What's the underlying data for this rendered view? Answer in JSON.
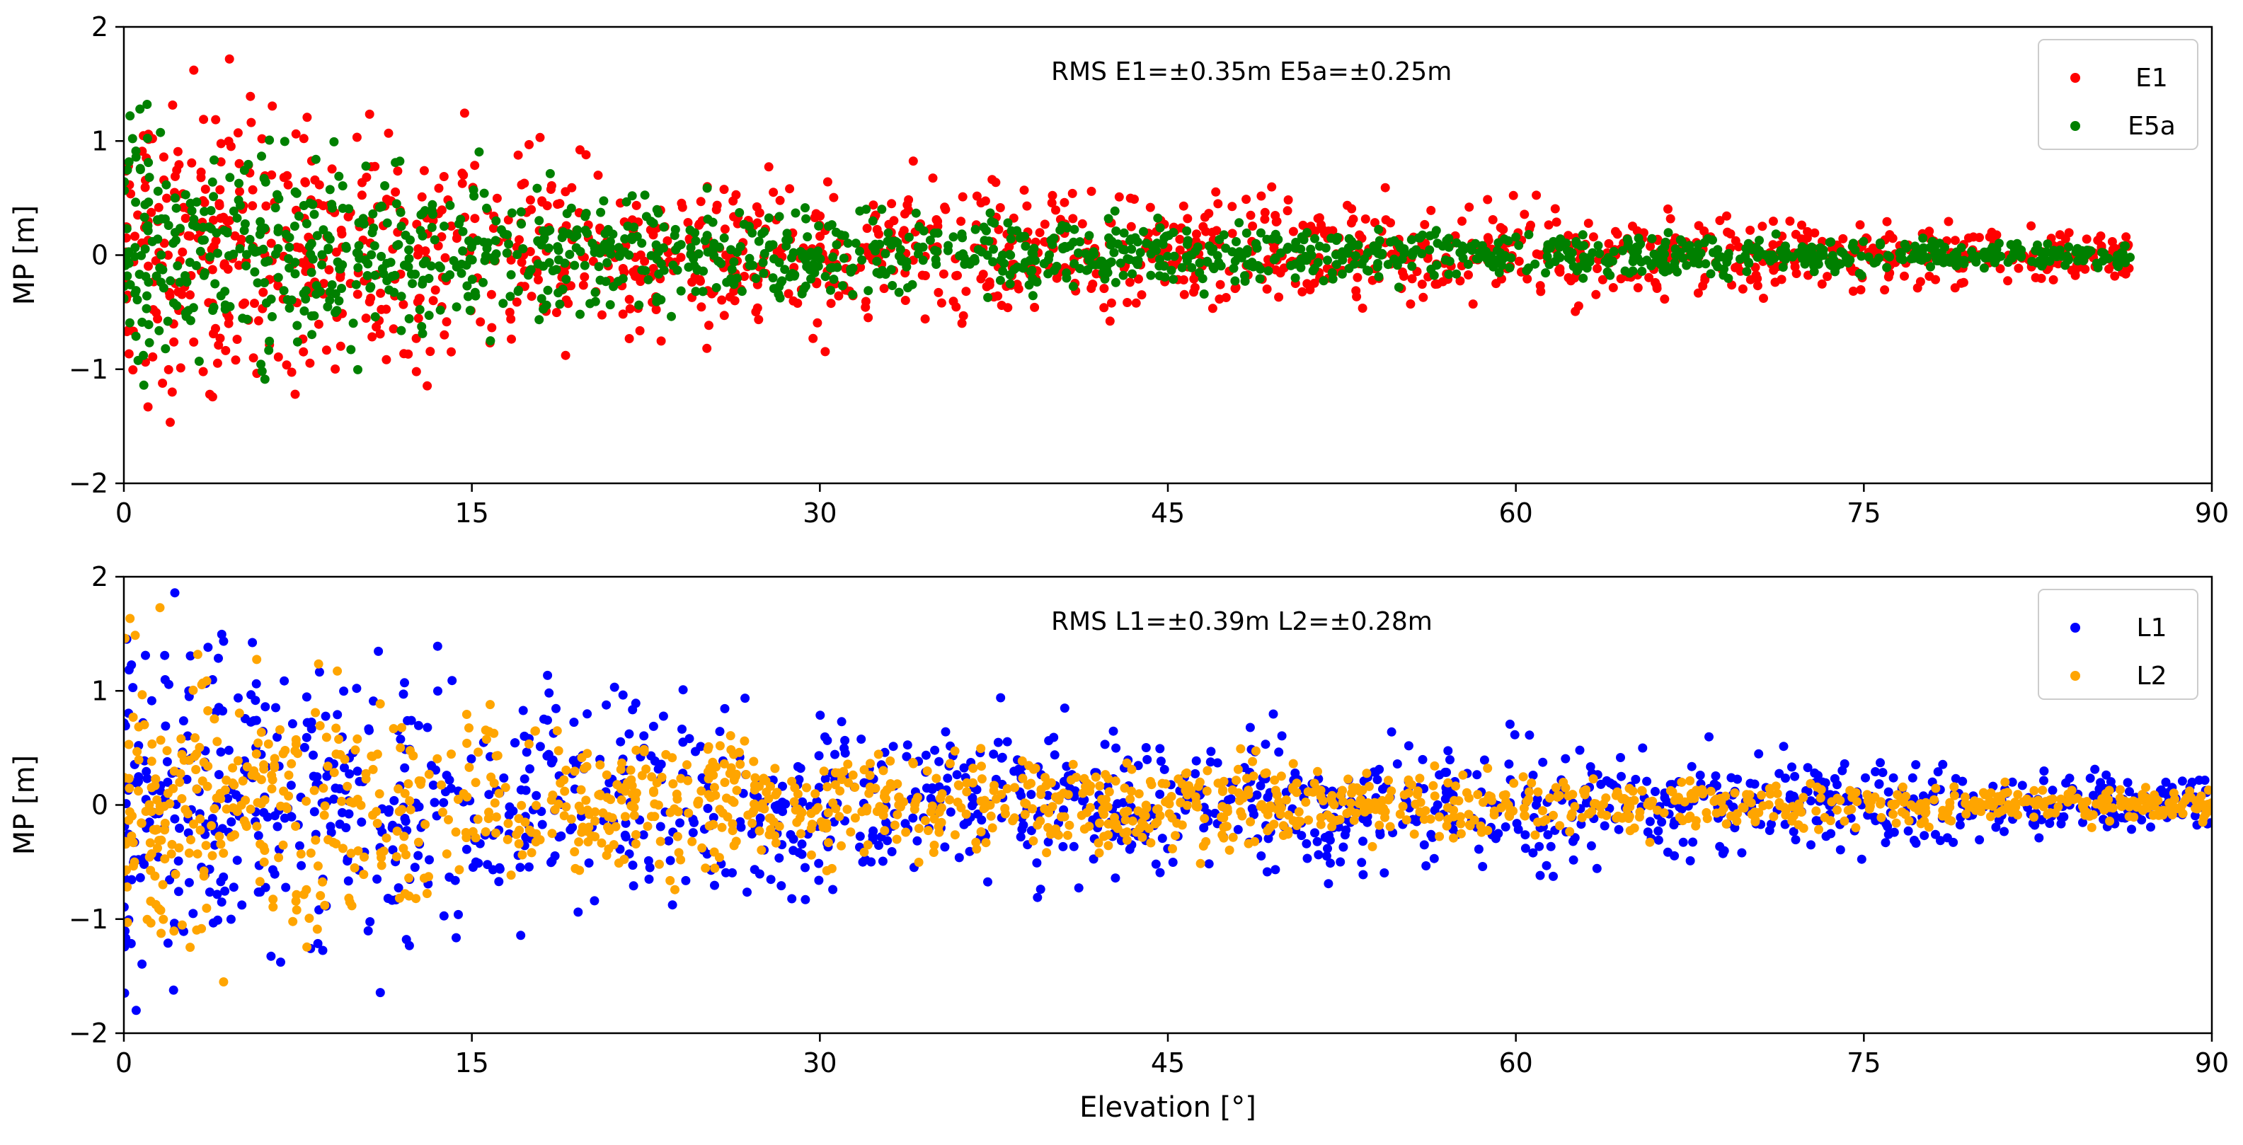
{
  "chart_data": [
    {
      "type": "scatter",
      "title": "",
      "xlabel": "",
      "ylabel": "MP [m]",
      "xlim": [
        0,
        90
      ],
      "ylim": [
        -2,
        2
      ],
      "xticks": [
        0,
        15,
        30,
        45,
        60,
        75,
        90
      ],
      "yticks": [
        -2,
        -1,
        0,
        1,
        2
      ],
      "xtick_labels": [
        "0",
        "15",
        "30",
        "45",
        "60",
        "75",
        "90"
      ],
      "ytick_labels": [
        "−2",
        "−1",
        "0",
        "1",
        "2"
      ],
      "annotation": "RMS E1=±0.35m E5a=±0.25m",
      "legend_position": "top-right",
      "grid": false,
      "series": [
        {
          "name": "E1",
          "color": "#ff0000",
          "rms": 0.35,
          "envelope": [
            {
              "x": 0,
              "sd": 0.7
            },
            {
              "x": 10,
              "sd": 0.55
            },
            {
              "x": 20,
              "sd": 0.4
            },
            {
              "x": 30,
              "sd": 0.3
            },
            {
              "x": 45,
              "sd": 0.25
            },
            {
              "x": 60,
              "sd": 0.2
            },
            {
              "x": 75,
              "sd": 0.15
            },
            {
              "x": 86.5,
              "sd": 0.1
            }
          ]
        },
        {
          "name": "E5a",
          "color": "#008000",
          "rms": 0.25,
          "envelope": [
            {
              "x": 0,
              "sd": 0.55
            },
            {
              "x": 10,
              "sd": 0.4
            },
            {
              "x": 20,
              "sd": 0.25
            },
            {
              "x": 30,
              "sd": 0.18
            },
            {
              "x": 45,
              "sd": 0.14
            },
            {
              "x": 60,
              "sd": 0.1
            },
            {
              "x": 75,
              "sd": 0.07
            },
            {
              "x": 86.5,
              "sd": 0.05
            }
          ]
        }
      ]
    },
    {
      "type": "scatter",
      "title": "",
      "xlabel": "Elevation [°]",
      "ylabel": "MP [m]",
      "xlim": [
        0,
        90
      ],
      "ylim": [
        -2,
        2
      ],
      "xticks": [
        0,
        15,
        30,
        45,
        60,
        75,
        90
      ],
      "yticks": [
        -2,
        -1,
        0,
        1,
        2
      ],
      "xtick_labels": [
        "0",
        "15",
        "30",
        "45",
        "60",
        "75",
        "90"
      ],
      "ytick_labels": [
        "−2",
        "−1",
        "0",
        "1",
        "2"
      ],
      "annotation": "RMS L1=±0.39m L2=±0.28m",
      "legend_position": "top-right",
      "grid": false,
      "series": [
        {
          "name": "L1",
          "color": "#0000ff",
          "rms": 0.39,
          "envelope": [
            {
              "x": 0,
              "sd": 0.75
            },
            {
              "x": 10,
              "sd": 0.6
            },
            {
              "x": 20,
              "sd": 0.45
            },
            {
              "x": 30,
              "sd": 0.35
            },
            {
              "x": 45,
              "sd": 0.3
            },
            {
              "x": 60,
              "sd": 0.25
            },
            {
              "x": 75,
              "sd": 0.18
            },
            {
              "x": 90,
              "sd": 0.12
            }
          ]
        },
        {
          "name": "L2",
          "color": "#ffa500",
          "rms": 0.28,
          "envelope": [
            {
              "x": 0,
              "sd": 0.6
            },
            {
              "x": 10,
              "sd": 0.48
            },
            {
              "x": 20,
              "sd": 0.3
            },
            {
              "x": 30,
              "sd": 0.22
            },
            {
              "x": 45,
              "sd": 0.18
            },
            {
              "x": 60,
              "sd": 0.13
            },
            {
              "x": 75,
              "sd": 0.09
            },
            {
              "x": 90,
              "sd": 0.06
            }
          ]
        }
      ]
    }
  ]
}
